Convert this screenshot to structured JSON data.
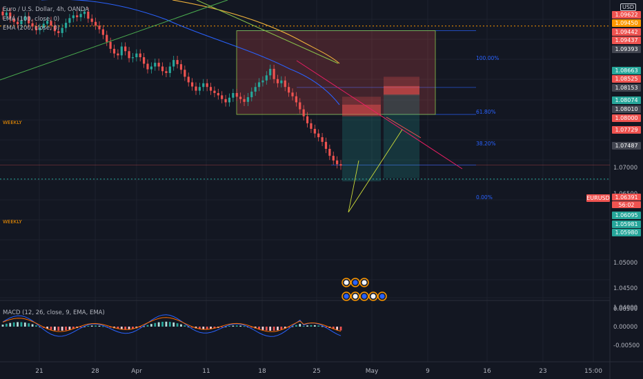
{
  "header": {
    "symbol_title": "Euro / U.S. Dollar, 4h, OANDA",
    "ema_100_label": "EMA (100, close, 0)",
    "ema_200_label": "EMA (200, close, 0)",
    "currency_button": "USD",
    "macd_label": "MACD (12, 26, close, 9, EMA, EMA)"
  },
  "annotations": {
    "weekly_upper": "WEEKLY",
    "weekly_lower": "WEEKLY",
    "fib_100": "100.00%",
    "fib_618": "61.80%",
    "fib_382": "38.20%",
    "fib_0": "0.00%"
  },
  "colors": {
    "background": "#131722",
    "up_candle": "#26a69a",
    "down_candle": "#ef5350",
    "ema100": "#2962ff",
    "ema200": "#f0b23b",
    "trendline_green": "#4caf50",
    "trendline_red": "#e91e63",
    "weekly_orange": "#ff9800",
    "weekly_teal": "#26a69a",
    "fib_blue": "#2962ff"
  },
  "chart_data": {
    "type": "line",
    "title": "Euro / U.S. Dollar, 4h, OANDA",
    "xlabel": "",
    "ylabel": "",
    "x_ticks": [
      "21",
      "28",
      "Apr",
      "11",
      "18",
      "25",
      "May",
      "9",
      "16",
      "23",
      "15:00"
    ],
    "y_ticks": [
      "1.07000",
      "1.06500",
      "1.05000",
      "1.04500",
      "1.04000"
    ],
    "macd_y_ticks": [
      "0.00500",
      "0.00000",
      "-0.00500"
    ],
    "ylim": [
      1.0355,
      1.0995
    ],
    "current_price": {
      "label": "EURUSD",
      "value": "1.06391",
      "countdown": "56:02"
    },
    "price_labels": [
      {
        "value": "1.09622",
        "color": "#ef5350"
      },
      {
        "value": "1.09450",
        "color": "#ff9800"
      },
      {
        "value": "1.09442",
        "color": "#ef5350"
      },
      {
        "value": "1.09437",
        "color": "#ef5350"
      },
      {
        "value": "1.09393",
        "color": "#434651"
      },
      {
        "value": "1.08663",
        "color": "#26a69a"
      },
      {
        "value": "1.08525",
        "color": "#ef5350"
      },
      {
        "value": "1.08153",
        "color": "#434651"
      },
      {
        "value": "1.08074",
        "color": "#26a69a"
      },
      {
        "value": "1.08010",
        "color": "#434651"
      },
      {
        "value": "1.08000",
        "color": "#ef5350"
      },
      {
        "value": "1.07729",
        "color": "#ef5350"
      },
      {
        "value": "1.07487",
        "color": "#434651"
      },
      {
        "value": "1.06095",
        "color": "#26a69a"
      },
      {
        "value": "1.05981",
        "color": "#26a69a"
      },
      {
        "value": "1.05980",
        "color": "#26a69a"
      }
    ],
    "levels": {
      "weekly_resistance": 1.0939,
      "weekly_support": 1.061,
      "fib_100": 1.0929,
      "fib_618": 1.0807,
      "fib_382": 1.0749,
      "fib_0": 1.064
    },
    "series": [
      {
        "name": "EUR/USD close",
        "values": [
          1.0962,
          1.0968,
          1.0955,
          1.0948,
          1.0943,
          1.0951,
          1.096,
          1.0945,
          1.0938,
          1.093,
          1.0935,
          1.0944,
          1.095,
          1.094,
          1.0928,
          1.0924,
          1.0935,
          1.0946,
          1.0956,
          1.0962,
          1.0958,
          1.0965,
          1.097,
          1.0955,
          1.0948,
          1.094,
          1.0932,
          1.092,
          1.0905,
          1.089,
          1.088,
          1.0876,
          1.0895,
          1.0885,
          1.087,
          1.0872,
          1.088,
          1.0872,
          1.0858,
          1.0846,
          1.0852,
          1.086,
          1.0852,
          1.0842,
          1.0838,
          1.0852,
          1.0866,
          1.0857,
          1.0845,
          1.083,
          1.0818,
          1.0809,
          1.08,
          1.0808,
          1.0816,
          1.0808,
          1.08,
          1.0795,
          1.079,
          1.0782,
          1.0775,
          1.0785,
          1.0795,
          1.0787,
          1.0782,
          1.0776,
          1.0786,
          1.0798,
          1.0808,
          1.0818,
          1.0822,
          1.0833,
          1.0847,
          1.0825,
          1.0816,
          1.0822,
          1.0808,
          1.0796,
          1.0788,
          1.0775,
          1.076,
          1.0745,
          1.073,
          1.0718,
          1.0708,
          1.07,
          1.069,
          1.0675,
          1.066,
          1.065,
          1.0642,
          1.0639
        ]
      }
    ]
  }
}
